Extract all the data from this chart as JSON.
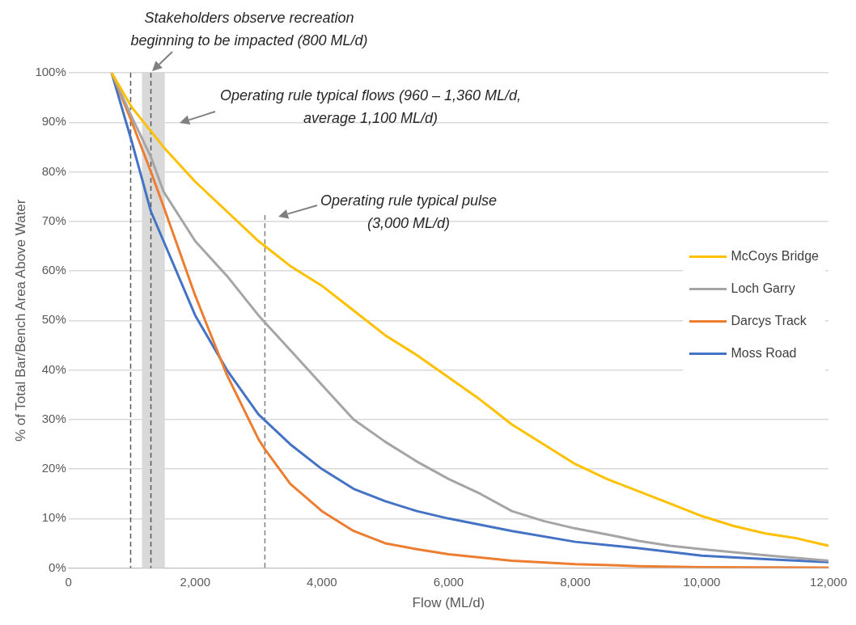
{
  "chart_data": {
    "type": "line",
    "xlabel": "Flow (ML/d)",
    "ylabel": "% of Total Bar/Bench Area Above Water",
    "xlim": [
      0,
      12000
    ],
    "xticks": [
      {
        "value": 0,
        "label": "0"
      },
      {
        "value": 2000,
        "label": "2,000"
      },
      {
        "value": 4000,
        "label": "4,000"
      },
      {
        "value": 6000,
        "label": "6,000"
      },
      {
        "value": 8000,
        "label": "8,000"
      },
      {
        "value": 10000,
        "label": "10,000"
      },
      {
        "value": 12000,
        "label": "12,000"
      }
    ],
    "ylim": [
      0,
      100
    ],
    "yticks": [
      {
        "value": 0,
        "label": "0%"
      },
      {
        "value": 10,
        "label": "10%"
      },
      {
        "value": 20,
        "label": "20%"
      },
      {
        "value": 30,
        "label": "30%"
      },
      {
        "value": 40,
        "label": "40%"
      },
      {
        "value": 50,
        "label": "50%"
      },
      {
        "value": 60,
        "label": "60%"
      },
      {
        "value": 70,
        "label": "70%"
      },
      {
        "value": 80,
        "label": "80%"
      },
      {
        "value": 90,
        "label": "90%"
      },
      {
        "value": 100,
        "label": "100%"
      }
    ],
    "grid": "y",
    "legend": "right",
    "marker": "none",
    "line_style": "solid",
    "series": [
      {
        "name": "McCoys Bridge",
        "color": "#ffc000",
        "x": [
          680,
          1000,
          1500,
          2000,
          2500,
          3000,
          3500,
          4000,
          4500,
          5000,
          5500,
          6000,
          6500,
          7000,
          7500,
          8000,
          8500,
          9000,
          9500,
          10000,
          10500,
          11000,
          11500,
          12000
        ],
        "values": [
          100,
          93,
          85,
          78,
          72,
          66,
          61,
          57,
          52,
          47,
          43,
          38.5,
          34,
          29,
          25,
          21,
          18,
          15.5,
          13,
          10.5,
          8.5,
          7,
          6,
          4.5
        ]
      },
      {
        "name": "Loch Garry",
        "color": "#a5a5a5",
        "x": [
          680,
          1000,
          1300,
          1500,
          2000,
          2500,
          3000,
          3500,
          4000,
          4500,
          5000,
          5500,
          6000,
          6500,
          7000,
          7500,
          8000,
          8500,
          9000,
          9500,
          10000,
          11000,
          12000
        ],
        "values": [
          100,
          91,
          83,
          76,
          66,
          59,
          51,
          44,
          37,
          30,
          25.5,
          21.5,
          18,
          15,
          11.5,
          9.5,
          8,
          6.8,
          5.5,
          4.5,
          3.8,
          2.6,
          1.5
        ]
      },
      {
        "name": "Darcys Track",
        "color": "#ed7d31",
        "x": [
          680,
          1000,
          1300,
          1500,
          2000,
          2500,
          3000,
          3100,
          3500,
          4000,
          4500,
          5000,
          5500,
          6000,
          7000,
          8000,
          9000,
          10000,
          12000
        ],
        "values": [
          100,
          90,
          80,
          73,
          55,
          39,
          26,
          24,
          17,
          11.5,
          7.5,
          5,
          3.8,
          2.8,
          1.5,
          0.8,
          0.4,
          0.2,
          0.1
        ]
      },
      {
        "name": "Moss Road",
        "color": "#4472c4",
        "x": [
          680,
          1000,
          1300,
          1500,
          2000,
          2500,
          3000,
          3500,
          4000,
          4500,
          5000,
          5500,
          6000,
          7000,
          8000,
          9000,
          10000,
          11000,
          12000
        ],
        "values": [
          100,
          86,
          72,
          66,
          51,
          40,
          31,
          25,
          20,
          16,
          13.5,
          11.5,
          10,
          7.5,
          5.3,
          4,
          2.5,
          1.8,
          1.2
        ]
      }
    ],
    "ref_lines": [
      {
        "axis": "x",
        "value": 980,
        "color": "#595959",
        "line_style": "dashed"
      },
      {
        "axis": "x",
        "value": 1300,
        "color": "#595959",
        "line_style": "dashed"
      },
      {
        "axis": "x",
        "value": 3100,
        "color": "#7f7f7f",
        "line_style": "dashed"
      }
    ],
    "bands": [
      {
        "axis": "x",
        "from": 1160,
        "to": 1520,
        "color": "#d9d9d9"
      }
    ],
    "annotations": [
      "Stakeholders observe recreation beginning to be impacted (800 ML/d)",
      "Operating rule typical flows (960 – 1,360 ML/d, average 1,100 ML/d)",
      "Operating rule typical pulse (3,000 ML/d)"
    ]
  }
}
